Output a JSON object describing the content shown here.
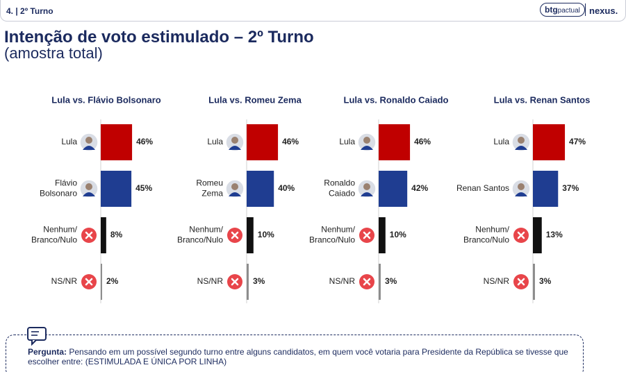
{
  "header": {
    "section": "4. | 2º Turno",
    "brand": "btg",
    "brand_suffix": "pactual",
    "partner": "nexus."
  },
  "title": "Intenção de voto estimulado – 2º Turno",
  "subtitle": "(amostra total)",
  "question": {
    "label": "Pergunta:",
    "text": "Pensando em um possível segundo turno entre alguns candidatos, em quem você votaria para Presidente da República se tivesse que escolher entre: (ESTIMULADA E ÚNICA POR LINHA)"
  },
  "chart_data": [
    {
      "type": "bar",
      "orientation": "horizontal",
      "title": "Lula vs. Flávio Bolsonaro",
      "categories": [
        "Lula",
        "Flávio\nBolsonaro",
        "Nenhum/\nBranco/Nulo",
        "NS/NR"
      ],
      "values": [
        46,
        45,
        8,
        2
      ],
      "value_labels": [
        "46%",
        "45%",
        "8%",
        "2%"
      ],
      "colors": [
        "#c00000",
        "#1f3d91",
        "#111111",
        "#8c8c8c"
      ]
    },
    {
      "type": "bar",
      "orientation": "horizontal",
      "title": "Lula vs. Romeu Zema",
      "categories": [
        "Lula",
        "Romeu\nZema",
        "Nenhum/\nBranco/Nulo",
        "NS/NR"
      ],
      "values": [
        46,
        40,
        10,
        3
      ],
      "value_labels": [
        "46%",
        "40%",
        "10%",
        "3%"
      ],
      "colors": [
        "#c00000",
        "#1f3d91",
        "#111111",
        "#8c8c8c"
      ]
    },
    {
      "type": "bar",
      "orientation": "horizontal",
      "title": "Lula vs. Ronaldo Caiado",
      "categories": [
        "Lula",
        "Ronaldo\nCaiado",
        "Nenhum/\nBranco/Nulo",
        "NS/NR"
      ],
      "values": [
        46,
        42,
        10,
        3
      ],
      "value_labels": [
        "46%",
        "42%",
        "10%",
        "3%"
      ],
      "colors": [
        "#c00000",
        "#1f3d91",
        "#111111",
        "#8c8c8c"
      ]
    },
    {
      "type": "bar",
      "orientation": "horizontal",
      "title": "Lula vs. Renan Santos",
      "categories": [
        "Lula",
        "Renan Santos",
        "Nenhum/\nBranco/Nulo",
        "NS/NR"
      ],
      "values": [
        47,
        37,
        13,
        3
      ],
      "value_labels": [
        "47%",
        "37%",
        "13%",
        "3%"
      ],
      "colors": [
        "#c00000",
        "#1f3d91",
        "#111111",
        "#8c8c8c"
      ]
    }
  ]
}
